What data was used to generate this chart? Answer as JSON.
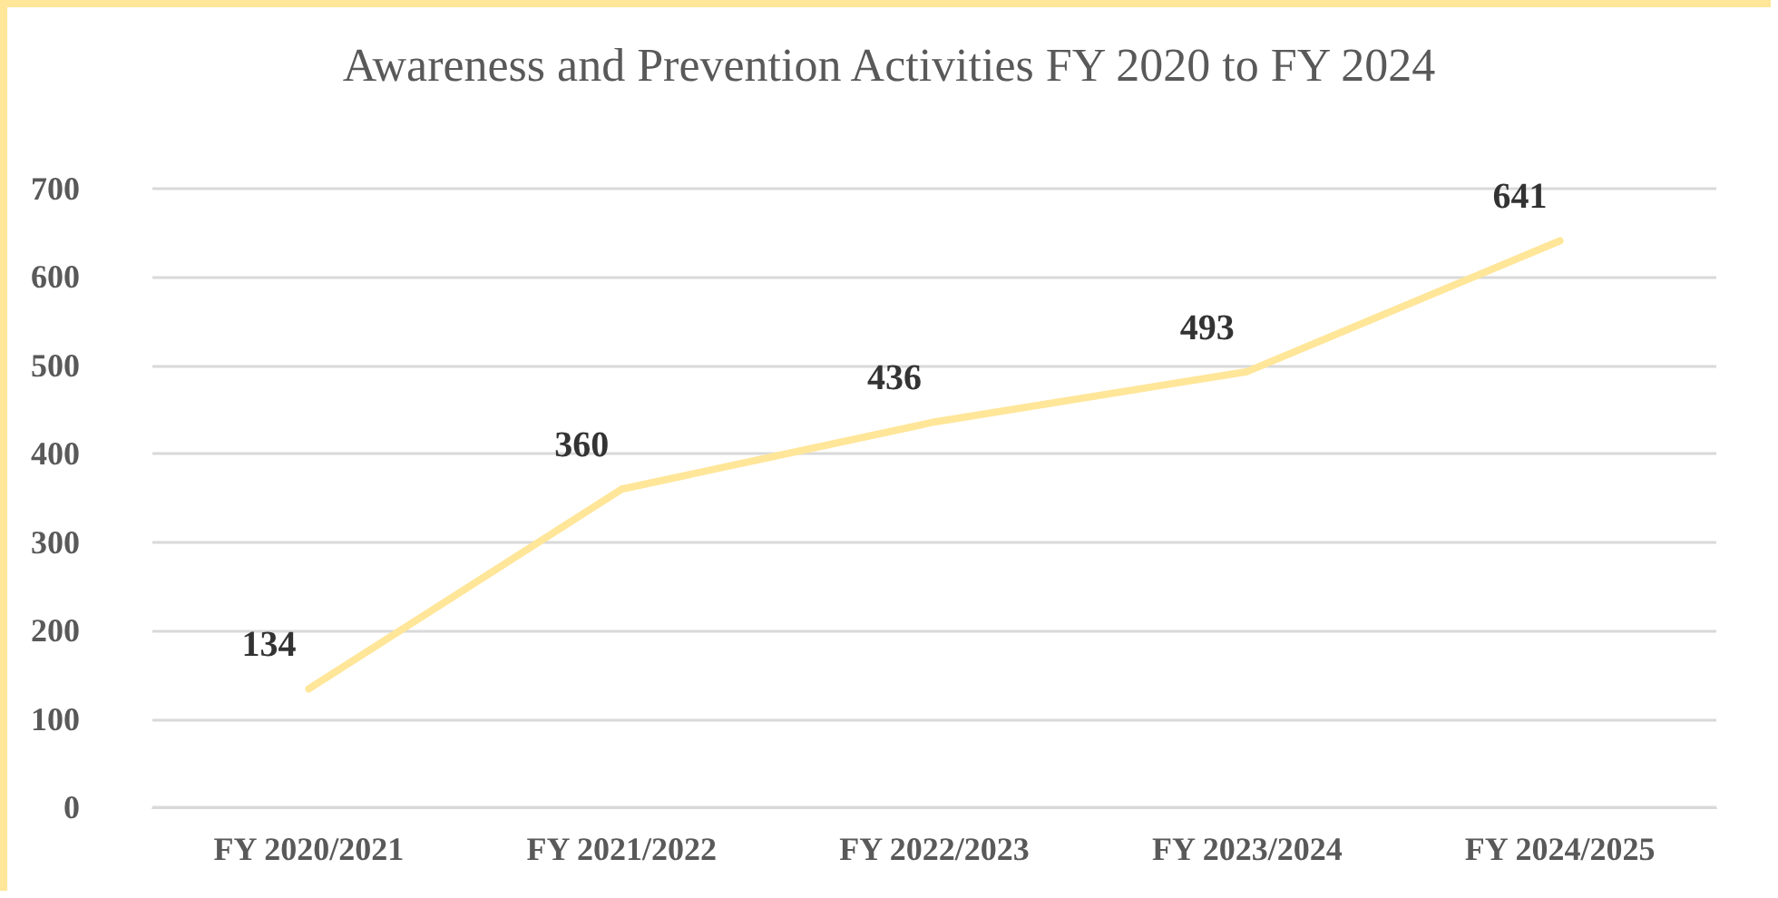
{
  "chart_data": {
    "type": "line",
    "title": "Awareness and Prevention Activities FY 2020 to FY 2024",
    "categories": [
      "FY 2020/2021",
      "FY 2021/2022",
      "FY 2022/2023",
      "FY 2023/2024",
      "FY 2024/2025"
    ],
    "series": [
      {
        "color": "#ffe699",
        "values": [
          134,
          360,
          436,
          493,
          641
        ]
      }
    ],
    "ylim": [
      0,
      700
    ],
    "yticks": [
      0,
      100,
      200,
      300,
      400,
      500,
      600,
      700
    ],
    "grid": "y",
    "data_labels": true,
    "marker": "none",
    "line_style": "solid"
  }
}
